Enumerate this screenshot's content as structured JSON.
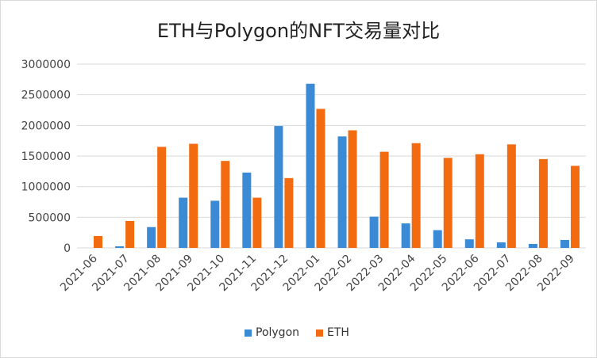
{
  "chart_data": {
    "type": "bar",
    "title": "ETH与Polygon的NFT交易量对比",
    "categories": [
      "2021-06",
      "2021-07",
      "2021-08",
      "2021-09",
      "2021-10",
      "2021-11",
      "2021-12",
      "2022-01",
      "2022-02",
      "2022-03",
      "2022-04",
      "2022-05",
      "2022-06",
      "2022-07",
      "2022-08",
      "2022-09"
    ],
    "series": [
      {
        "name": "Polygon",
        "color": "#3a8ad6",
        "values": [
          0,
          26000,
          340000,
          820000,
          770000,
          1230000,
          1990000,
          2680000,
          1820000,
          510000,
          400000,
          290000,
          140000,
          90000,
          65000,
          130000
        ]
      },
      {
        "name": "ETH",
        "color": "#f26b10",
        "values": [
          195000,
          440000,
          1650000,
          1700000,
          1420000,
          820000,
          1140000,
          2270000,
          1920000,
          1570000,
          1710000,
          1470000,
          1530000,
          1690000,
          1450000,
          1340000
        ]
      }
    ],
    "yticks": [
      "0",
      "500000",
      "1000000",
      "1500000",
      "2000000",
      "2500000",
      "3000000"
    ],
    "ylim": [
      0,
      3000000
    ],
    "grid": true,
    "legend": "bottom"
  }
}
